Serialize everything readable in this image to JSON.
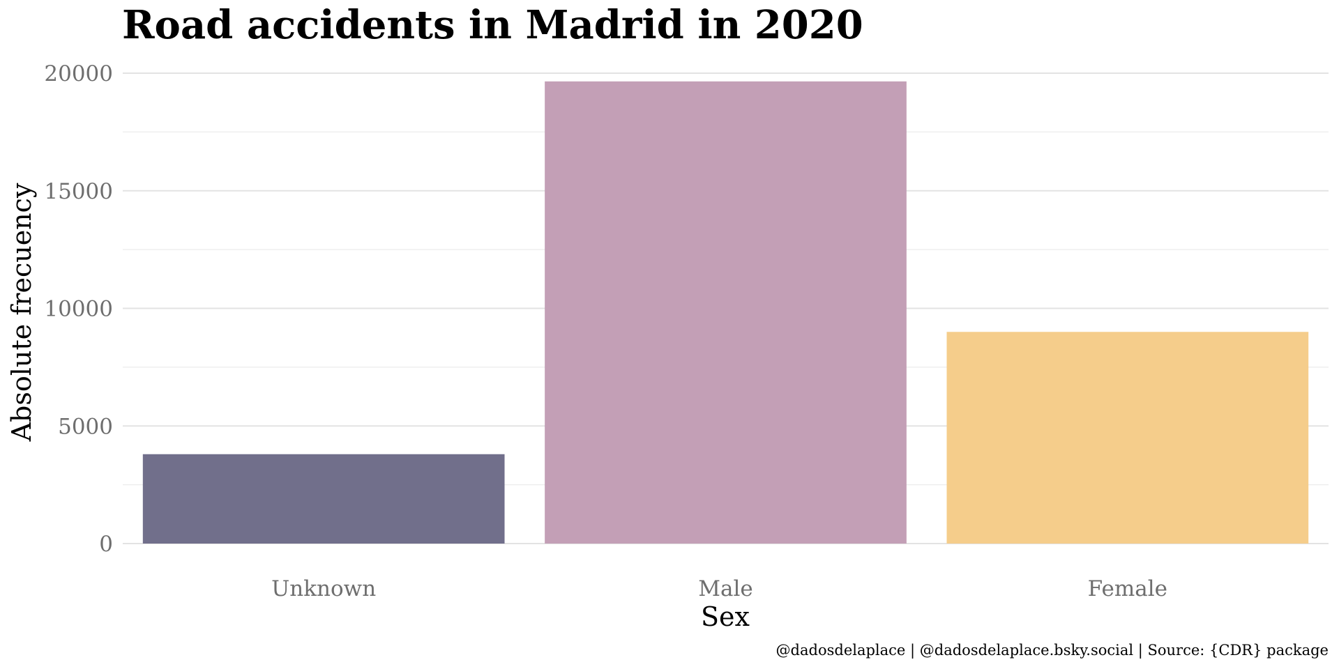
{
  "chart_data": {
    "type": "bar",
    "title": "Road accidents in Madrid in 2020",
    "xlabel": "Sex",
    "ylabel": "Absolute frecuency",
    "caption": "@dadosdelaplace | @dadosdelaplace.bsky.social | Source: {CDR} package",
    "categories": [
      "Unknown",
      "Male",
      "Female"
    ],
    "values": [
      3800,
      19650,
      9000
    ],
    "colors": [
      "#716f8b",
      "#c39fb6",
      "#f5cd8b"
    ],
    "ylim": [
      0,
      20000
    ],
    "yticks": [
      0,
      5000,
      10000,
      15000,
      20000
    ],
    "ytick_labels": [
      "0",
      "5000",
      "10000",
      "15000",
      "20000"
    ],
    "grid": true,
    "legend": "none"
  }
}
